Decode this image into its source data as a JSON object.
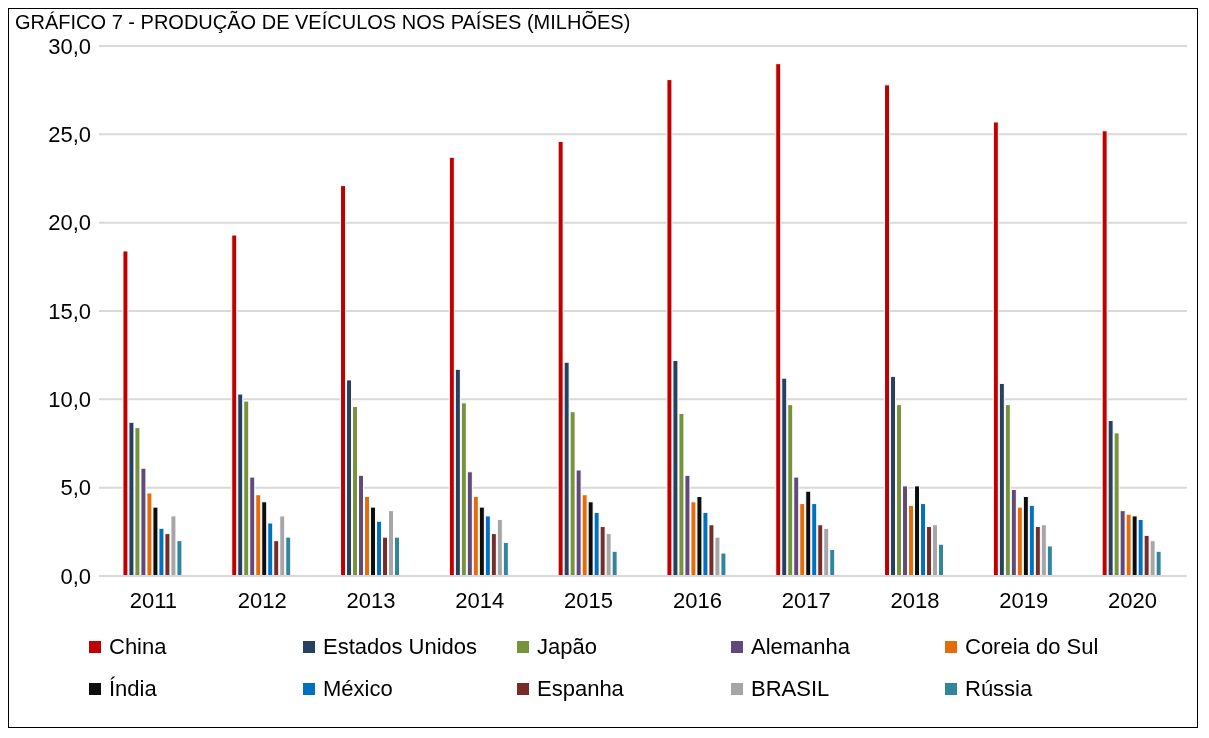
{
  "chart_data": {
    "type": "bar",
    "title": "GRÁFICO 7 - PRODUÇÃO DE VEÍCULOS NOS PAÍSES (MILHÕES)",
    "categories": [
      "2011",
      "2012",
      "2013",
      "2014",
      "2015",
      "2016",
      "2017",
      "2018",
      "2019",
      "2020"
    ],
    "series": [
      {
        "name": "China",
        "color": "#c00000",
        "values": [
          18.4,
          19.3,
          22.1,
          23.7,
          24.6,
          28.1,
          29.0,
          27.8,
          25.7,
          25.2
        ]
      },
      {
        "name": "Estados Unidos",
        "color": "#254061",
        "values": [
          8.7,
          10.3,
          11.1,
          11.7,
          12.1,
          12.2,
          11.2,
          11.3,
          10.9,
          8.8
        ]
      },
      {
        "name": "Japão",
        "color": "#77933c",
        "values": [
          8.4,
          9.9,
          9.6,
          9.8,
          9.3,
          9.2,
          9.7,
          9.7,
          9.7,
          8.1
        ]
      },
      {
        "name": "Alemanha",
        "color": "#604a7b",
        "values": [
          6.1,
          5.6,
          5.7,
          5.9,
          6.0,
          5.7,
          5.6,
          5.1,
          4.9,
          3.7
        ]
      },
      {
        "name": "Coreia do Sul",
        "color": "#e46c0a",
        "values": [
          4.7,
          4.6,
          4.5,
          4.5,
          4.6,
          4.2,
          4.1,
          4.0,
          3.9,
          3.5
        ]
      },
      {
        "name": "Índia",
        "color": "#0d0d0d",
        "values": [
          3.9,
          4.2,
          3.9,
          3.9,
          4.2,
          4.5,
          4.8,
          5.1,
          4.5,
          3.4
        ]
      },
      {
        "name": "México",
        "color": "#0070c0",
        "values": [
          2.7,
          3.0,
          3.1,
          3.4,
          3.6,
          3.6,
          4.1,
          4.1,
          4.0,
          3.2
        ]
      },
      {
        "name": "Espanha",
        "color": "#772c2a",
        "values": [
          2.4,
          2.0,
          2.2,
          2.4,
          2.8,
          2.9,
          2.9,
          2.8,
          2.8,
          2.3
        ]
      },
      {
        "name": "BRASIL",
        "color": "#a6a6a6",
        "values": [
          3.4,
          3.4,
          3.7,
          3.2,
          2.4,
          2.2,
          2.7,
          2.9,
          2.9,
          2.0
        ]
      },
      {
        "name": "Rússia",
        "color": "#31859c",
        "values": [
          2.0,
          2.2,
          2.2,
          1.9,
          1.4,
          1.3,
          1.5,
          1.8,
          1.7,
          1.4
        ]
      }
    ],
    "ylim": [
      0,
      30
    ],
    "yticks": [
      {
        "value": 0,
        "label": "0,0"
      },
      {
        "value": 5,
        "label": "5,0"
      },
      {
        "value": 10,
        "label": "10,0"
      },
      {
        "value": 15,
        "label": "15,0"
      },
      {
        "value": 20,
        "label": "20,0"
      },
      {
        "value": 25,
        "label": "25,0"
      },
      {
        "value": 30,
        "label": "30,0"
      }
    ],
    "grid": "y",
    "legend": "bottom"
  }
}
